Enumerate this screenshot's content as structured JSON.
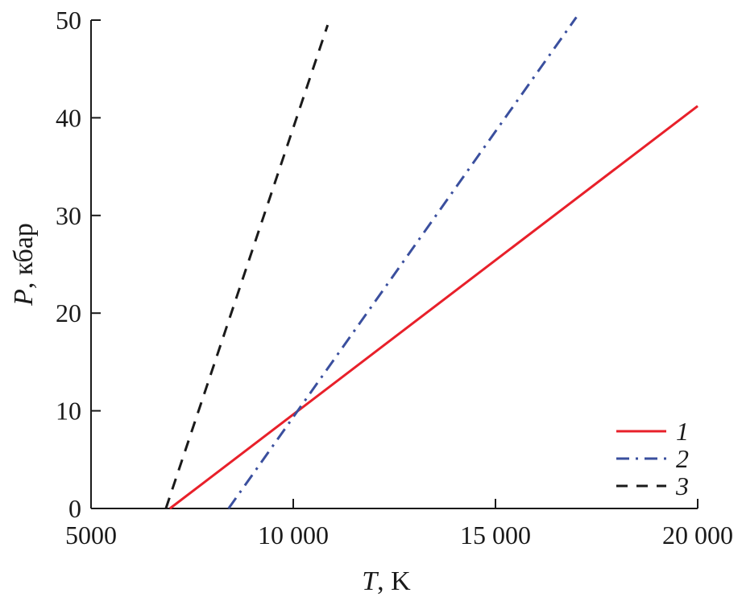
{
  "chart_data": {
    "type": "line",
    "xlabel": {
      "var": "T",
      "unit": ", K"
    },
    "ylabel": {
      "var": "P",
      "unit": ", кбар"
    },
    "xlim": [
      5000,
      20000
    ],
    "ylim": [
      0,
      50
    ],
    "xticks": [
      {
        "value": 5000,
        "label": "5000"
      },
      {
        "value": 10000,
        "label": "10 000"
      },
      {
        "value": 15000,
        "label": "15 000"
      },
      {
        "value": 20000,
        "label": "20 000"
      }
    ],
    "yticks": [
      {
        "value": 0,
        "label": "0"
      },
      {
        "value": 10,
        "label": "10"
      },
      {
        "value": 20,
        "label": "20"
      },
      {
        "value": 30,
        "label": "30"
      },
      {
        "value": 40,
        "label": "40"
      },
      {
        "value": 50,
        "label": "50"
      }
    ],
    "grid": false,
    "legend_position": "bottom-right",
    "series": [
      {
        "name": "1",
        "color": "#e8202a",
        "dash": "solid",
        "x": [
          6950,
          20000
        ],
        "y": [
          0,
          41.2
        ]
      },
      {
        "name": "2",
        "color": "#3a4f9e",
        "dash": "dashdot",
        "x": [
          8400,
          17000
        ],
        "y": [
          0,
          50.3
        ]
      },
      {
        "name": "3",
        "color": "#1a1a1a",
        "dash": "dashed",
        "x": [
          6850,
          10850
        ],
        "y": [
          0,
          49.5
        ]
      }
    ]
  }
}
